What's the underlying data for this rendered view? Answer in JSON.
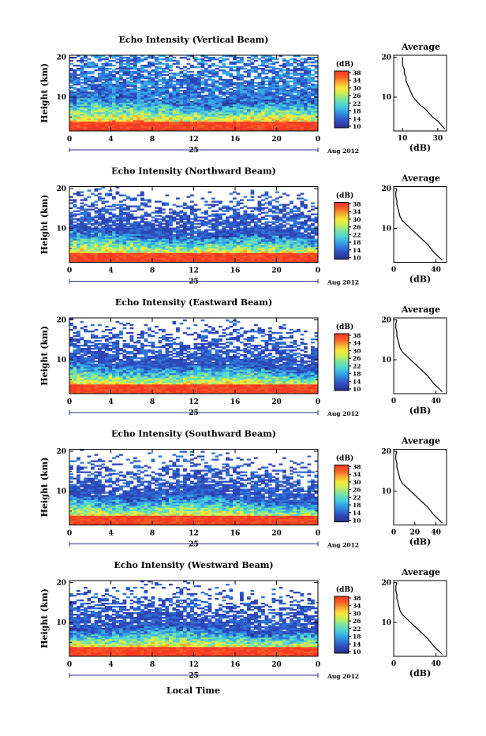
{
  "colors": {
    "colormap": [
      "#2a2f8a",
      "#2f47b8",
      "#2f73d8",
      "#35a8e8",
      "#4fd5d5",
      "#7be4a0",
      "#c8ee5a",
      "#f8e93c",
      "#f8a830",
      "#f85a26",
      "#f83a25"
    ],
    "white": "#ffffff",
    "line": "#000000"
  },
  "panels_text": {
    "ylabel": "Height (km)",
    "xlabel": "Local Time",
    "date_label": "Aug 2012",
    "day_label": "25",
    "colorbar_unit": "(dB)",
    "profile_title": "Average",
    "profile_xlabel": "(dB)"
  },
  "chart_data": [
    {
      "type": "heatmap",
      "title": "Echo Intensity (Vertical Beam)",
      "ylabel": "Height (km)",
      "xlabel": "",
      "xticks": [
        "0",
        "4",
        "8",
        "12",
        "16",
        "20",
        "0"
      ],
      "yticks": [
        "20",
        "10"
      ],
      "xlim": [
        0,
        24
      ],
      "ylim": [
        1.5,
        20.5
      ],
      "colorbar": {
        "label": "(dB)",
        "ticks": [
          "38",
          "34",
          "30",
          "26",
          "22",
          "18",
          "14",
          "10"
        ],
        "range": [
          10,
          38
        ]
      },
      "profile": {
        "title": "Average",
        "xlabel": "(dB)",
        "xticks": [
          "10",
          "30"
        ],
        "xlim": [
          5,
          35
        ],
        "height": [
          2,
          3,
          4,
          5,
          6,
          7,
          8,
          9,
          10,
          11,
          12,
          13,
          14,
          15,
          16,
          17,
          18,
          19,
          20
        ],
        "value": [
          34,
          32,
          30,
          27,
          25,
          23,
          20,
          18,
          16,
          15,
          14,
          13,
          12,
          12,
          11,
          11,
          10,
          10,
          10
        ]
      }
    },
    {
      "type": "heatmap",
      "title": "Echo Intensity (Northward Beam)",
      "ylabel": "Height (km)",
      "xlabel": "",
      "xticks": [
        "0",
        "4",
        "8",
        "12",
        "16",
        "20",
        "0"
      ],
      "yticks": [
        "20",
        "10"
      ],
      "xlim": [
        0,
        24
      ],
      "ylim": [
        1.5,
        20.5
      ],
      "colorbar": {
        "label": "(dB)",
        "ticks": [
          "38",
          "34",
          "30",
          "26",
          "22",
          "18",
          "14",
          "10"
        ],
        "range": [
          10,
          38
        ]
      },
      "profile": {
        "title": "Average",
        "xlabel": "(dB)",
        "xticks": [
          "0",
          "40"
        ],
        "xlim": [
          0,
          50
        ],
        "height": [
          2,
          3,
          4,
          5,
          6,
          7,
          8,
          9,
          10,
          11,
          12,
          13,
          14,
          15,
          16,
          17,
          18,
          19,
          20
        ],
        "value": [
          46,
          42,
          38,
          35,
          32,
          28,
          24,
          20,
          16,
          12,
          8,
          6,
          5,
          4,
          3,
          3,
          2,
          2,
          3
        ]
      }
    },
    {
      "type": "heatmap",
      "title": "Echo Intensity (Eastward Beam)",
      "ylabel": "Height (km)",
      "xlabel": "",
      "xticks": [
        "0",
        "4",
        "8",
        "12",
        "16",
        "20",
        "0"
      ],
      "yticks": [
        "20",
        "10"
      ],
      "xlim": [
        0,
        24
      ],
      "ylim": [
        1.5,
        20.5
      ],
      "colorbar": {
        "label": "(dB)",
        "ticks": [
          "38",
          "34",
          "30",
          "26",
          "22",
          "18",
          "14",
          "10"
        ],
        "range": [
          10,
          38
        ]
      },
      "profile": {
        "title": "Average",
        "xlabel": "(dB)",
        "xticks": [
          "0",
          "40"
        ],
        "xlim": [
          0,
          50
        ],
        "height": [
          2,
          3,
          4,
          5,
          6,
          7,
          8,
          9,
          10,
          11,
          12,
          13,
          14,
          15,
          16,
          17,
          18,
          19,
          20
        ],
        "value": [
          46,
          42,
          38,
          35,
          32,
          28,
          24,
          20,
          16,
          12,
          8,
          6,
          5,
          4,
          3,
          3,
          2,
          2,
          3
        ]
      }
    },
    {
      "type": "heatmap",
      "title": "Echo Intensity (Southward Beam)",
      "ylabel": "Height (km)",
      "xlabel": "",
      "xticks": [
        "0",
        "4",
        "8",
        "12",
        "16",
        "20",
        "0"
      ],
      "yticks": [
        "20",
        "10"
      ],
      "xlim": [
        0,
        24
      ],
      "ylim": [
        1.5,
        20.5
      ],
      "colorbar": {
        "label": "(dB)",
        "ticks": [
          "38",
          "34",
          "30",
          "26",
          "22",
          "18",
          "14",
          "10"
        ],
        "range": [
          10,
          38
        ]
      },
      "profile": {
        "title": "Average",
        "xlabel": "(dB)",
        "xticks": [
          "0",
          "20",
          "40"
        ],
        "xlim": [
          0,
          50
        ],
        "height": [
          2,
          3,
          4,
          5,
          6,
          7,
          8,
          9,
          10,
          11,
          12,
          13,
          14,
          15,
          16,
          17,
          18,
          19,
          20
        ],
        "value": [
          46,
          42,
          38,
          35,
          32,
          28,
          24,
          20,
          16,
          12,
          8,
          6,
          5,
          4,
          3,
          3,
          2,
          2,
          3
        ]
      }
    },
    {
      "type": "heatmap",
      "title": "Echo Intensity (Westward Beam)",
      "ylabel": "Height (km)",
      "xlabel": "Local Time",
      "xticks": [
        "0",
        "4",
        "8",
        "12",
        "16",
        "20",
        "0"
      ],
      "yticks": [
        "20",
        "10"
      ],
      "xlim": [
        0,
        24
      ],
      "ylim": [
        1.5,
        20.5
      ],
      "colorbar": {
        "label": "(dB)",
        "ticks": [
          "38",
          "34",
          "30",
          "26",
          "22",
          "18",
          "14",
          "10"
        ],
        "range": [
          10,
          38
        ]
      },
      "profile": {
        "title": "Average",
        "xlabel": "(dB)",
        "xticks": [
          "0",
          "40"
        ],
        "xlim": [
          0,
          50
        ],
        "height": [
          2,
          3,
          4,
          5,
          6,
          7,
          8,
          9,
          10,
          11,
          12,
          13,
          14,
          15,
          16,
          17,
          18,
          19,
          20
        ],
        "value": [
          46,
          42,
          38,
          35,
          32,
          28,
          24,
          20,
          16,
          12,
          8,
          6,
          5,
          4,
          3,
          3,
          2,
          2,
          3
        ]
      }
    }
  ]
}
